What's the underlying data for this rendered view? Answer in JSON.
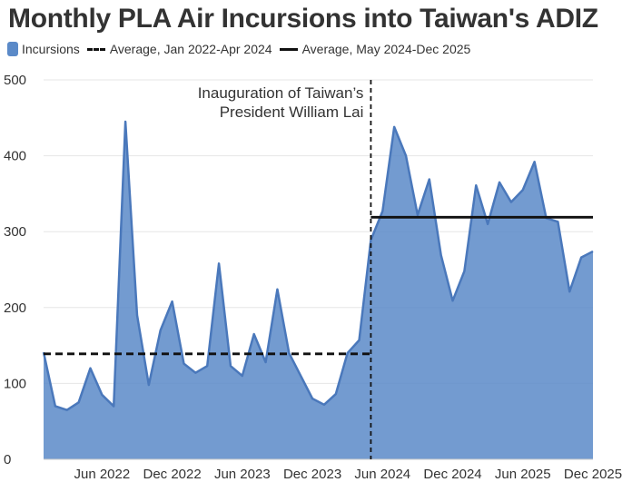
{
  "chart_data": {
    "type": "area",
    "title": "Monthly PLA Air Incursions into Taiwan's ADIZ",
    "xlabel": "",
    "ylabel": "",
    "ylim": [
      0,
      500
    ],
    "yticks": [
      0,
      100,
      200,
      300,
      400,
      500
    ],
    "grid": true,
    "legend_position": "top-left",
    "x": [
      "Jan 2022",
      "Feb 2022",
      "Mar 2022",
      "Apr 2022",
      "May 2022",
      "Jun 2022",
      "Jul 2022",
      "Aug 2022",
      "Sep 2022",
      "Oct 2022",
      "Nov 2022",
      "Dec 2022",
      "Jan 2023",
      "Feb 2023",
      "Mar 2023",
      "Apr 2023",
      "May 2023",
      "Jun 2023",
      "Jul 2023",
      "Aug 2023",
      "Sep 2023",
      "Oct 2023",
      "Nov 2023",
      "Dec 2023",
      "Jan 2024",
      "Feb 2024",
      "Mar 2024",
      "Apr 2024",
      "May 2024",
      "Jun 2024",
      "Jul 2024",
      "Aug 2024",
      "Sep 2024",
      "Oct 2024",
      "Nov 2024",
      "Dec 2024",
      "Jan 2025",
      "Feb 2025",
      "Mar 2025",
      "Apr 2025",
      "May 2025",
      "Jun 2025",
      "Jul 2025",
      "Aug 2025",
      "Sep 2025",
      "Oct 2025",
      "Nov 2025",
      "Dec 2025"
    ],
    "x_tick_labels": [
      {
        "index": 5,
        "label": "Jun 2022"
      },
      {
        "index": 11,
        "label": "Dec 2022"
      },
      {
        "index": 17,
        "label": "Jun 2023"
      },
      {
        "index": 23,
        "label": "Dec 2023"
      },
      {
        "index": 29,
        "label": "Jun 2024"
      },
      {
        "index": 35,
        "label": "Dec 2024"
      },
      {
        "index": 41,
        "label": "Jun 2025"
      },
      {
        "index": 47,
        "label": "Dec 2025"
      }
    ],
    "series": [
      {
        "name": "Incursions",
        "color": "#5b8ac8",
        "values": [
          141,
          70,
          65,
          75,
          120,
          85,
          70,
          445,
          190,
          98,
          170,
          208,
          126,
          114,
          123,
          258,
          123,
          110,
          165,
          128,
          224,
          140,
          110,
          80,
          72,
          86,
          140,
          157,
          289,
          327,
          438,
          400,
          322,
          369,
          269,
          209,
          248,
          361,
          310,
          365,
          339,
          355,
          392,
          318,
          313,
          221,
          266,
          274
        ]
      }
    ],
    "reference_lines": [
      {
        "name": "Average, Jan 2022-Apr 2024",
        "value": 139,
        "start_index": 0,
        "end_index": 28,
        "style": "dashed",
        "color": "#111111"
      },
      {
        "name": "Average, May 2024-Dec 2025",
        "value": 319,
        "start_index": 28,
        "end_index": 47,
        "style": "solid",
        "color": "#111111"
      }
    ],
    "annotations": [
      {
        "text_lines": [
          "Inauguration of Taiwan’s",
          "President William Lai"
        ],
        "index": 28,
        "style": "dashed-vertical"
      }
    ]
  }
}
